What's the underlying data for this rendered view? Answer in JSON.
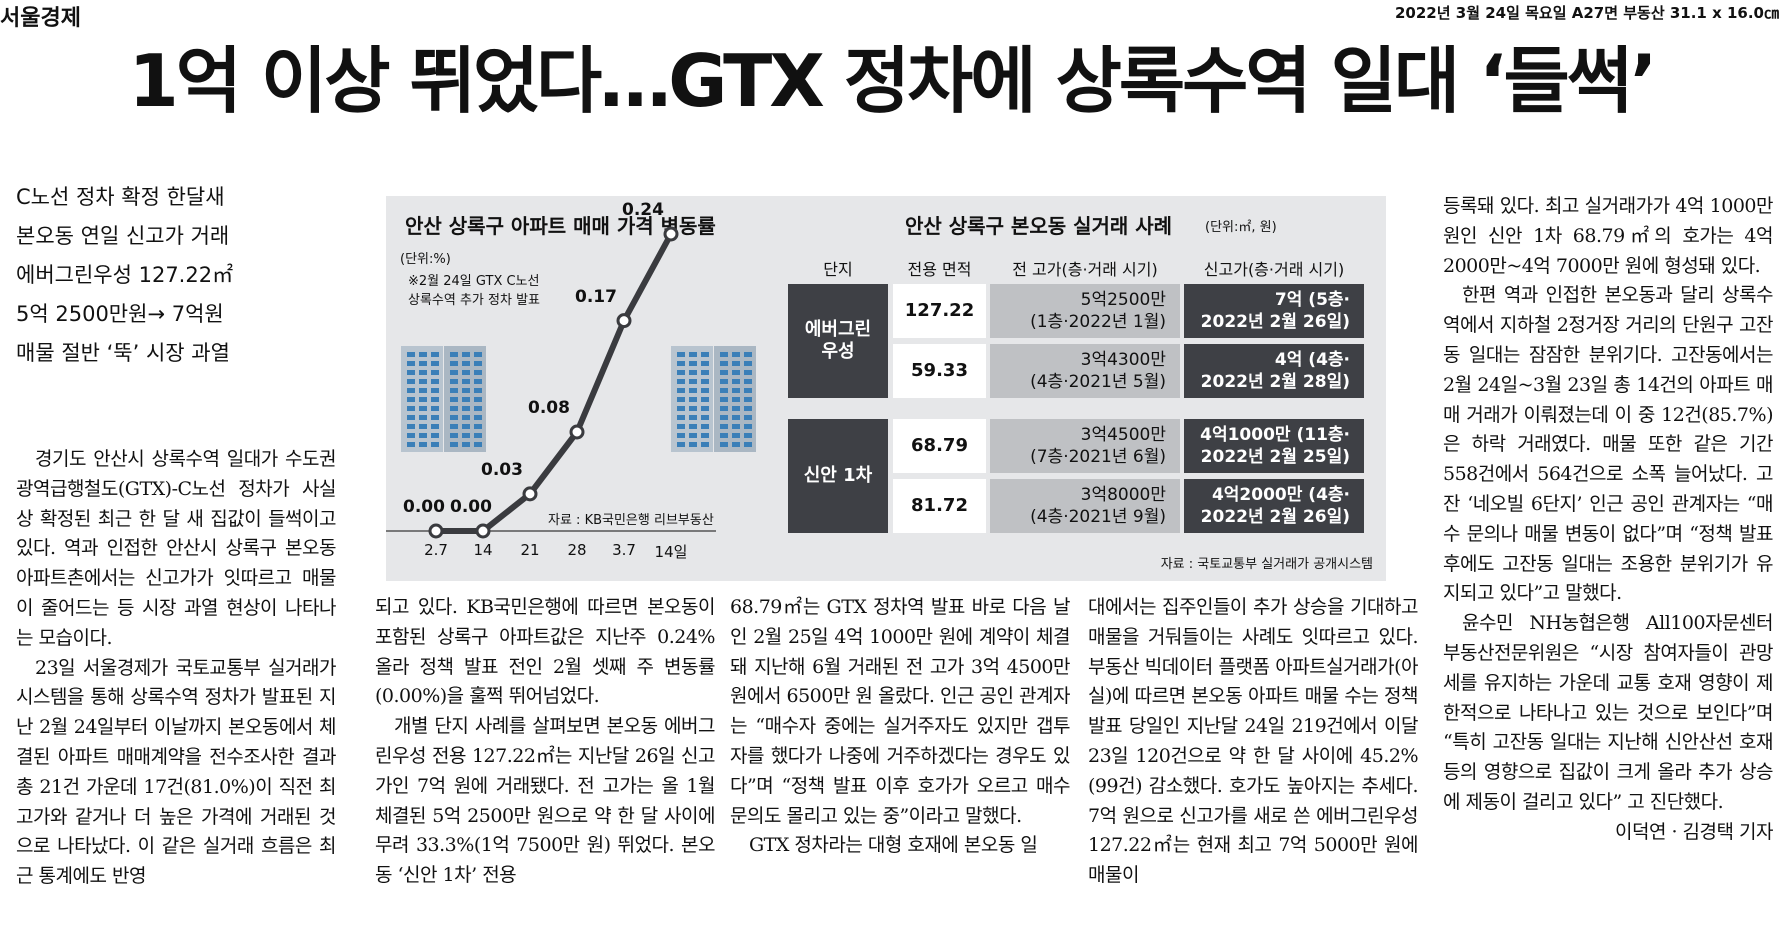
{
  "masthead": "서울경제",
  "dateline": "2022년 3월 24일 목요일 A27면 부동산 31.1 x 16.0㎝",
  "headline": "1억 이상 뛰었다…GTX 정차에 상록수역 일대 ‘들썩’",
  "subheads": [
    "C노선 정차 확정 한달새",
    "본오동 연일 신고가 거래",
    "에버그린우성 127.22㎡",
    "5억 2500만원→ 7억원",
    "매물 절반 ‘뚝’ 시장 과열"
  ],
  "col1": [
    {
      "indent": true,
      "text": "경기도 안산시 상록수역 일대가 수도권광역급행철도(GTX)-C노선 정차가 사실상 확정된 최근 한 달 새 집값이 들썩이고 있다. 역과 인접한 안산시 상록구 본오동 아파트촌에서는 신고가가 잇따르고 매물이 줄어드는 등 시장 과열 현상이 나타나는 모습이다."
    },
    {
      "indent": true,
      "text": "23일 서울경제가 국토교통부 실거래가 시스템을 통해 상록수역 정차가 발표된 지난 2월 24일부터 이날까지 본오동에서 체결된 아파트 매매계약을 전수조사한 결과 총 21건 가운데 17건(81.0%)이 직전 최고가와 같거나 더 높은 가격에 거래된 것으로 나타났다. 이 같은 실거래 흐름은 최근 통계에도 반영"
    }
  ],
  "col2": [
    {
      "indent": false,
      "text": "되고 있다. KB국민은행에 따르면 본오동이 포함된 상록구 아파트값은 지난주 0.24% 올라 정책 발표 전인 2월 셋째 주 변동률(0.00%)을 훌쩍 뛰어넘었다."
    },
    {
      "indent": true,
      "text": "개별 단지 사례를 살펴보면 본오동 에버그린우성 전용 127.22㎡는 지난달 26일 신고가인 7억 원에 거래됐다. 전 고가는 올 1월 체결된 5억 2500만 원으로 약 한 달 사이에 무려 33.3%(1억 7500만 원) 뛰었다. 본오동 ‘신안 1차’ 전용"
    }
  ],
  "col3": [
    {
      "indent": false,
      "text": "68.79㎡는 GTX 정차역 발표 바로 다음 날인 2월 25일 4억 1000만 원에 계약이 체결돼 지난해 6월 거래된 전 고가 3억 4500만 원에서 6500만 원 올랐다. 인근 공인 관계자는 “매수자 중에는 실거주자도 있지만 갭투자를 했다가 나중에 거주하겠다는 경우도 있다”며 “정책 발표 이후 호가가 오르고 매수 문의도 몰리고 있는 중”이라고 말했다."
    },
    {
      "indent": true,
      "text": "GTX 정차라는 대형 호재에 본오동 일"
    }
  ],
  "col4": [
    {
      "indent": false,
      "text": "대에서는 집주인들이 추가 상승을 기대하고 매물을 거둬들이는 사례도 잇따르고 있다. 부동산 빅데이터 플랫폼 아파트실거래가(아실)에 따르면 본오동 아파트 매물 수는 정책 발표 당일인 지난달 24일 219건에서 이달 23일 120건으로 약 한 달 사이에 45.2%(99건) 감소했다. 호가도 높아지는 추세다. 7억 원으로 신고가를 새로 쓴 에버그린우성 127.22㎡는 현재 최고 7억 5000만 원에 매물이"
    }
  ],
  "col5": [
    {
      "indent": false,
      "text": "등록돼 있다. 최고 실거래가가 4억 1000만 원인 신안 1차 68.79㎡의 호가는 4억 2000만~4억 7000만 원에 형성돼 있다."
    },
    {
      "indent": true,
      "text": "한편 역과 인접한 본오동과 달리 상록수역에서 지하철 2정거장 거리의 단원구 고잔동 일대는 잠잠한 분위기다. 고잔동에서는 2월 24일~3월 23일 총 14건의 아파트 매매 거래가 이뤄졌는데 이 중 12건(85.7%)은 하락 거래였다. 매물 또한 같은 기간 558건에서 564건으로 소폭 늘어났다. 고잔 ‘네오빌 6단지’ 인근 공인 관계자는 “매수 문의나 매물 변동이 없다”며 “정책 발표 후에도 고잔동 일대는 조용한 분위기가 유지되고 있다”고 말했다."
    },
    {
      "indent": true,
      "text": "윤수민 NH농협은행 All100자문센터 부동산전문위원은 “시장 참여자들이 관망세를 유지하는 가운데 교통 호재 영향이 제한적으로 나타나고 있는 것으로 보인다”며 “특히 고잔동 일대는 지난해 신안산선 호재 등의 영향으로 집값이 크게 올라 추가 상승에 제동이 걸리고 있다” 고 진단했다."
    }
  ],
  "byline": "이덕연 · 김경택 기자",
  "chart_data": {
    "type": "line",
    "title": "안산 상록구 아파트 매매 가격 변동률",
    "unit": "(단위:%)",
    "note": "※2월 24일 GTX C노선\n상록수역 추가 정차 발표",
    "source": "자료 : KB국민은행 리브부동산",
    "categories": [
      "2.7",
      "14",
      "21",
      "28",
      "3.7",
      "14일"
    ],
    "values": [
      0.0,
      0.0,
      0.03,
      0.08,
      0.17,
      0.24
    ],
    "value_labels": [
      "0.00",
      "0.00",
      "0.03",
      "0.08",
      "0.17",
      "0.24"
    ],
    "ylim": [
      0,
      0.24
    ]
  },
  "table": {
    "title": "안산 상록구 본오동 실거래 사례",
    "unit": "(단위:㎡, 원)",
    "headers": [
      "단지",
      "전용 면적",
      "전 고가(층·거래 시기)",
      "신고가(층·거래 시기)"
    ],
    "groups": [
      {
        "complex": "에버그린\n우성",
        "rows": [
          {
            "area": "127.22",
            "prev": "5억2500만\n(1층·2022년 1월)",
            "new": "7억 (5층·\n2022년 2월 26일)"
          },
          {
            "area": "59.33",
            "prev": "3억4300만\n(4층·2021년 5월)",
            "new": "4억 (4층·\n2022년 2월 28일)"
          }
        ]
      },
      {
        "complex": "신안 1차",
        "rows": [
          {
            "area": "68.79",
            "prev": "3억4500만\n(7층·2021년 6월)",
            "new": "4억1000만 (11층·\n2022년 2월 25일)"
          },
          {
            "area": "81.72",
            "prev": "3억8000만\n(4층·2021년 9월)",
            "new": "4억2000만 (4층·\n2022년 2월 26일)"
          }
        ]
      }
    ],
    "source": "자료 : 국토교통부 실거래가 공개시스템"
  }
}
